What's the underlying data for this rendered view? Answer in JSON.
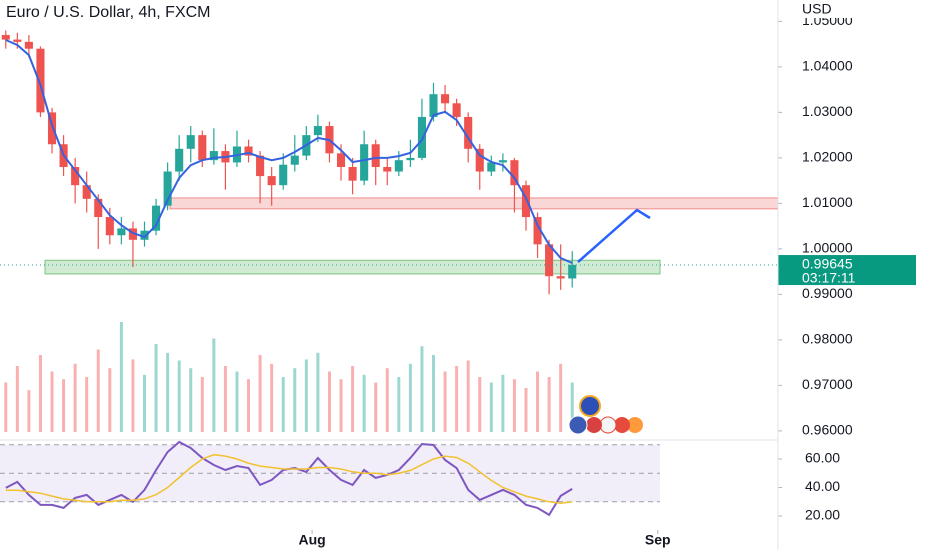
{
  "chart_data": [
    {
      "type": "candlestick",
      "title": "Euro / U.S. Dollar, 4h, FXCM",
      "unit": "USD",
      "up_color": "#26a69a",
      "down_color": "#ef5350",
      "ma_color": "#3563e0",
      "open": [
        1.047,
        1.046,
        1.0455,
        1.044,
        1.03,
        1.023,
        1.018,
        1.014,
        1.011,
        1.007,
        1.003,
        1.0045,
        1.002,
        1.004,
        1.0095,
        1.017,
        1.022,
        1.025,
        1.0195,
        1.0215,
        1.019,
        1.0225,
        1.0205,
        1.016,
        1.014,
        1.0185,
        1.0205,
        1.025,
        1.027,
        1.021,
        1.018,
        1.015,
        1.023,
        1.018,
        1.017,
        1.0195,
        1.02,
        1.029,
        1.034,
        1.032,
        1.029,
        1.022,
        1.017,
        1.019,
        1.0195,
        1.014,
        1.007,
        1.001,
        0.994,
        0.9935
      ],
      "high": [
        1.048,
        1.0475,
        1.047,
        1.0445,
        1.031,
        1.025,
        1.02,
        1.017,
        1.012,
        1.009,
        1.007,
        1.006,
        1.006,
        1.011,
        1.019,
        1.025,
        1.027,
        1.026,
        1.0265,
        1.023,
        1.026,
        1.024,
        1.0215,
        1.018,
        1.021,
        1.025,
        1.027,
        1.0295,
        1.028,
        1.023,
        1.02,
        1.026,
        1.024,
        1.02,
        1.0215,
        1.024,
        1.033,
        1.0365,
        1.036,
        1.033,
        1.03,
        1.023,
        1.0205,
        1.021,
        1.02,
        1.015,
        1.008,
        1.002,
        1.001,
        0.9995
      ],
      "low": [
        1.044,
        1.044,
        1.042,
        1.029,
        1.021,
        1.016,
        1.01,
        1.008,
        1.0,
        1.001,
        1.001,
        0.996,
        1.0005,
        1.003,
        1.0085,
        1.015,
        1.019,
        1.018,
        1.0185,
        1.013,
        1.018,
        1.019,
        1.01,
        1.0095,
        1.013,
        1.017,
        1.0195,
        1.0235,
        1.019,
        1.015,
        1.012,
        1.014,
        1.014,
        1.014,
        1.016,
        1.018,
        1.0195,
        1.028,
        1.03,
        1.027,
        1.019,
        1.013,
        1.016,
        1.017,
        1.008,
        1.004,
        0.998,
        0.99,
        0.991,
        0.9915
      ],
      "close": [
        1.046,
        1.0455,
        1.044,
        1.03,
        1.023,
        1.018,
        1.014,
        1.011,
        1.007,
        1.003,
        1.0045,
        1.002,
        1.004,
        1.0095,
        1.017,
        1.022,
        1.025,
        1.0195,
        1.0215,
        1.019,
        1.0225,
        1.0205,
        1.016,
        1.014,
        1.0185,
        1.0205,
        1.025,
        1.027,
        1.021,
        1.018,
        1.015,
        1.023,
        1.018,
        1.017,
        1.0195,
        1.02,
        1.029,
        1.034,
        1.032,
        1.029,
        1.022,
        1.017,
        1.019,
        1.0195,
        1.014,
        1.007,
        1.001,
        0.994,
        0.9935,
        0.9965
      ],
      "ma": [
        1.0459,
        1.0448,
        1.0426,
        1.036,
        1.0272,
        1.0206,
        1.0173,
        1.014,
        1.0107,
        1.0074,
        1.0052,
        1.0035,
        1.0026,
        1.0052,
        1.0107,
        1.0156,
        1.0184,
        1.0195,
        1.02,
        1.0202,
        1.0206,
        1.0211,
        1.0202,
        1.0195,
        1.02,
        1.0213,
        1.0228,
        1.0244,
        1.0239,
        1.0217,
        1.0191,
        1.0195,
        1.02,
        1.02,
        1.0204,
        1.0211,
        1.0239,
        1.0294,
        1.0301,
        1.0283,
        1.0244,
        1.0206,
        1.0191,
        1.0184,
        1.0156,
        1.0112,
        1.0052,
        1.0009,
        0.998,
        0.9969
      ],
      "volume": [
        45,
        60,
        38,
        70,
        55,
        48,
        62,
        50,
        75,
        58,
        100,
        66,
        52,
        80,
        72,
        65,
        58,
        50,
        85,
        60,
        55,
        48,
        70,
        62,
        50,
        58,
        66,
        72,
        55,
        48,
        60,
        52,
        45,
        58,
        50,
        62,
        78,
        70,
        55,
        60,
        65,
        50,
        45,
        52,
        48,
        40,
        55,
        50,
        62,
        45
      ],
      "last_price": 0.99645,
      "countdown": "03:17:11",
      "zones": [
        {
          "low": 1.0088,
          "high": 1.0112,
          "color": "#f28b8b"
        },
        {
          "low": 0.9945,
          "high": 0.9975,
          "color": "#7cc47f"
        }
      ],
      "xlim": [
        -0.5,
        66.8
      ],
      "ylim": [
        0.958,
        1.0547
      ],
      "yticks": [
        {
          "value": 1.05,
          "label": "1.05000"
        },
        {
          "value": 1.04,
          "label": "1.04000"
        },
        {
          "value": 1.03,
          "label": "1.03000"
        },
        {
          "value": 1.02,
          "label": "1.02000"
        },
        {
          "value": 1.01,
          "label": "1.01000"
        },
        {
          "value": 1.0,
          "label": "1.00000"
        },
        {
          "value": 0.99,
          "label": "0.99000"
        },
        {
          "value": 0.98,
          "label": "0.98000"
        },
        {
          "value": 0.97,
          "label": "0.97000"
        },
        {
          "value": 0.96,
          "label": "0.96000"
        }
      ],
      "grid": false
    },
    {
      "type": "line",
      "series": [
        {
          "color": "#7e57c2",
          "values": [
            39.7,
            43.9,
            34.8,
            27.8,
            27.8,
            25.7,
            32.7,
            34.8,
            27.8,
            31.3,
            34.8,
            29.9,
            38.3,
            52.3,
            64.9,
            71.9,
            67.7,
            60.7,
            55.8,
            52.3,
            55.1,
            53.7,
            41.8,
            45.3,
            52.3,
            53.7,
            50.9,
            60.7,
            52.3,
            45.3,
            41.8,
            52.3,
            46.7,
            48.8,
            52.3,
            60.7,
            70.5,
            69.8,
            59.3,
            53.7,
            38.3,
            31.3,
            34.8,
            38.3,
            34.8,
            27.8,
            25.7,
            20.8,
            34.1,
            39.0
          ]
        },
        {
          "color": "#f2c12e",
          "values": [
            38,
            38,
            37,
            36,
            34,
            32,
            31,
            30,
            30,
            30,
            31,
            31,
            32,
            35,
            40,
            47,
            54,
            60,
            63,
            62,
            60,
            57,
            55,
            54,
            53,
            53,
            53,
            54,
            54,
            53,
            51,
            50,
            50,
            49,
            50,
            52,
            56,
            60,
            62,
            61,
            57,
            51,
            45,
            40,
            37,
            34,
            32,
            30,
            29,
            30
          ]
        }
      ],
      "bands": [
        30,
        50,
        70
      ],
      "band_color": "#7e57c2",
      "xlim": [
        -0.5,
        66.8
      ],
      "ylim": [
        10.2,
        73.3
      ],
      "yticks": [
        {
          "value": 60,
          "label": "60.00"
        },
        {
          "value": 40,
          "label": "40.00"
        },
        {
          "value": 20,
          "label": "20.00"
        }
      ],
      "xticks": [
        {
          "value": 26.5,
          "label": "Aug"
        },
        {
          "value": 56.4,
          "label": "Sep"
        }
      ]
    }
  ]
}
